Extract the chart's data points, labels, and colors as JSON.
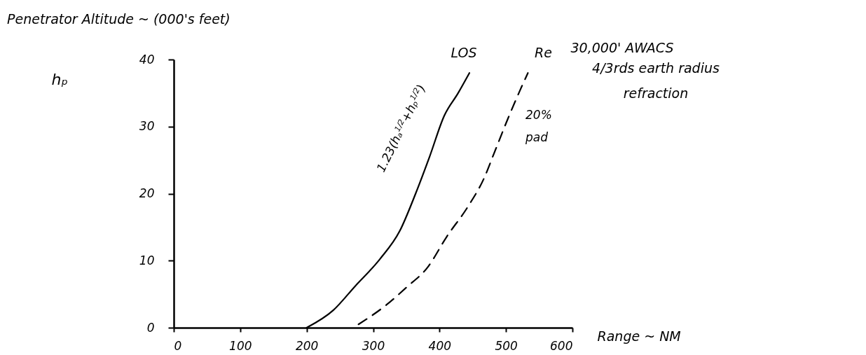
{
  "chart_data": {
    "type": "line",
    "title": "Penetrator Altitude ~ (000's feet)",
    "xlabel": "Range ~ NM",
    "ylabel": "hₚ",
    "series": [
      {
        "name": "LOS",
        "color": "#000000",
        "line_style": "solid",
        "x": [
          200,
          240,
          273,
          310,
          340,
          364,
          385,
          407,
          428,
          445
        ],
        "values": [
          0,
          2.6,
          6.2,
          10.2,
          14.4,
          20,
          25.5,
          31.6,
          35,
          38
        ]
      },
      {
        "name": "Re",
        "color": "#000000",
        "line_style": "dashed",
        "x": [
          278,
          320,
          350,
          382,
          411,
          443,
          467,
          482,
          503,
          522,
          533
        ],
        "values": [
          0.5,
          3.4,
          6,
          9,
          13.6,
          18.1,
          22.3,
          26,
          31.2,
          35.6,
          38
        ]
      }
    ],
    "annotations": [
      "30,000' AWACS",
      "4/3rds earth radius\nrefraction",
      "20%\npad",
      "1.23(hₐ$^{1/2}$+hₚ$^{1/2}$)"
    ],
    "xlim": [
      0,
      600
    ],
    "xticks": [
      0,
      100,
      200,
      300,
      400,
      500,
      600
    ],
    "ylim": [
      0,
      40
    ],
    "yticks": [
      0,
      10,
      20,
      30,
      40
    ],
    "grid": false,
    "marker": "none"
  }
}
